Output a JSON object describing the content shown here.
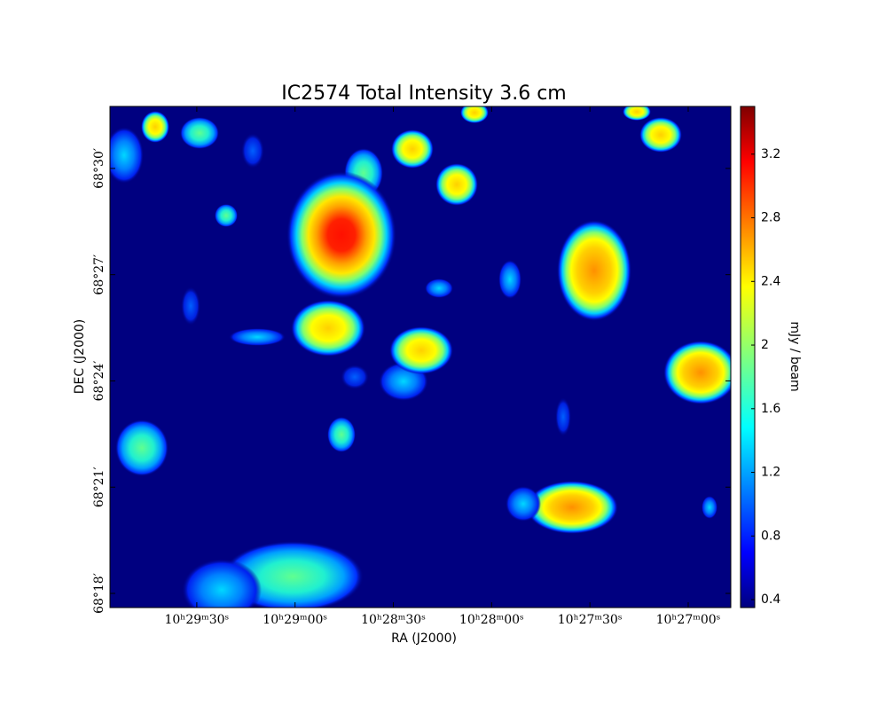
{
  "chart_data": {
    "type": "image",
    "title": "IC2574 Total Intensity 3.6 cm",
    "x_label": "RA (J2000)",
    "y_label": "DEC (J2000)",
    "xlim": [
      1796.5,
      1607
    ],
    "xticks": [
      {
        "value": 1770,
        "label": "10ʰ29ᵐ30ˢ"
      },
      {
        "value": 1740,
        "label": "10ʰ29ᵐ00ˢ"
      },
      {
        "value": 1710,
        "label": "10ʰ28ᵐ30ˢ"
      },
      {
        "value": 1680,
        "label": "10ʰ28ᵐ00ˢ"
      },
      {
        "value": 1650,
        "label": "10ʰ27ᵐ30ˢ"
      },
      {
        "value": 1620,
        "label": "10ʰ27ᵐ00ˢ"
      }
    ],
    "ylim": [
      4097.6,
      4111.75
    ],
    "yticks": [
      {
        "value": 4098,
        "label": "68°18′"
      },
      {
        "value": 4101,
        "label": "68°21′"
      },
      {
        "value": 4104,
        "label": "68°24′"
      },
      {
        "value": 4107,
        "label": "68°27′"
      },
      {
        "value": 4110,
        "label": "68°30′"
      }
    ],
    "colorbar_label": "mJy / beam",
    "clim": [
      0.35,
      3.5
    ],
    "cticks": [
      0.4,
      0.8,
      1.2,
      1.6,
      2.0,
      2.4,
      2.8,
      3.2
    ]
  }
}
